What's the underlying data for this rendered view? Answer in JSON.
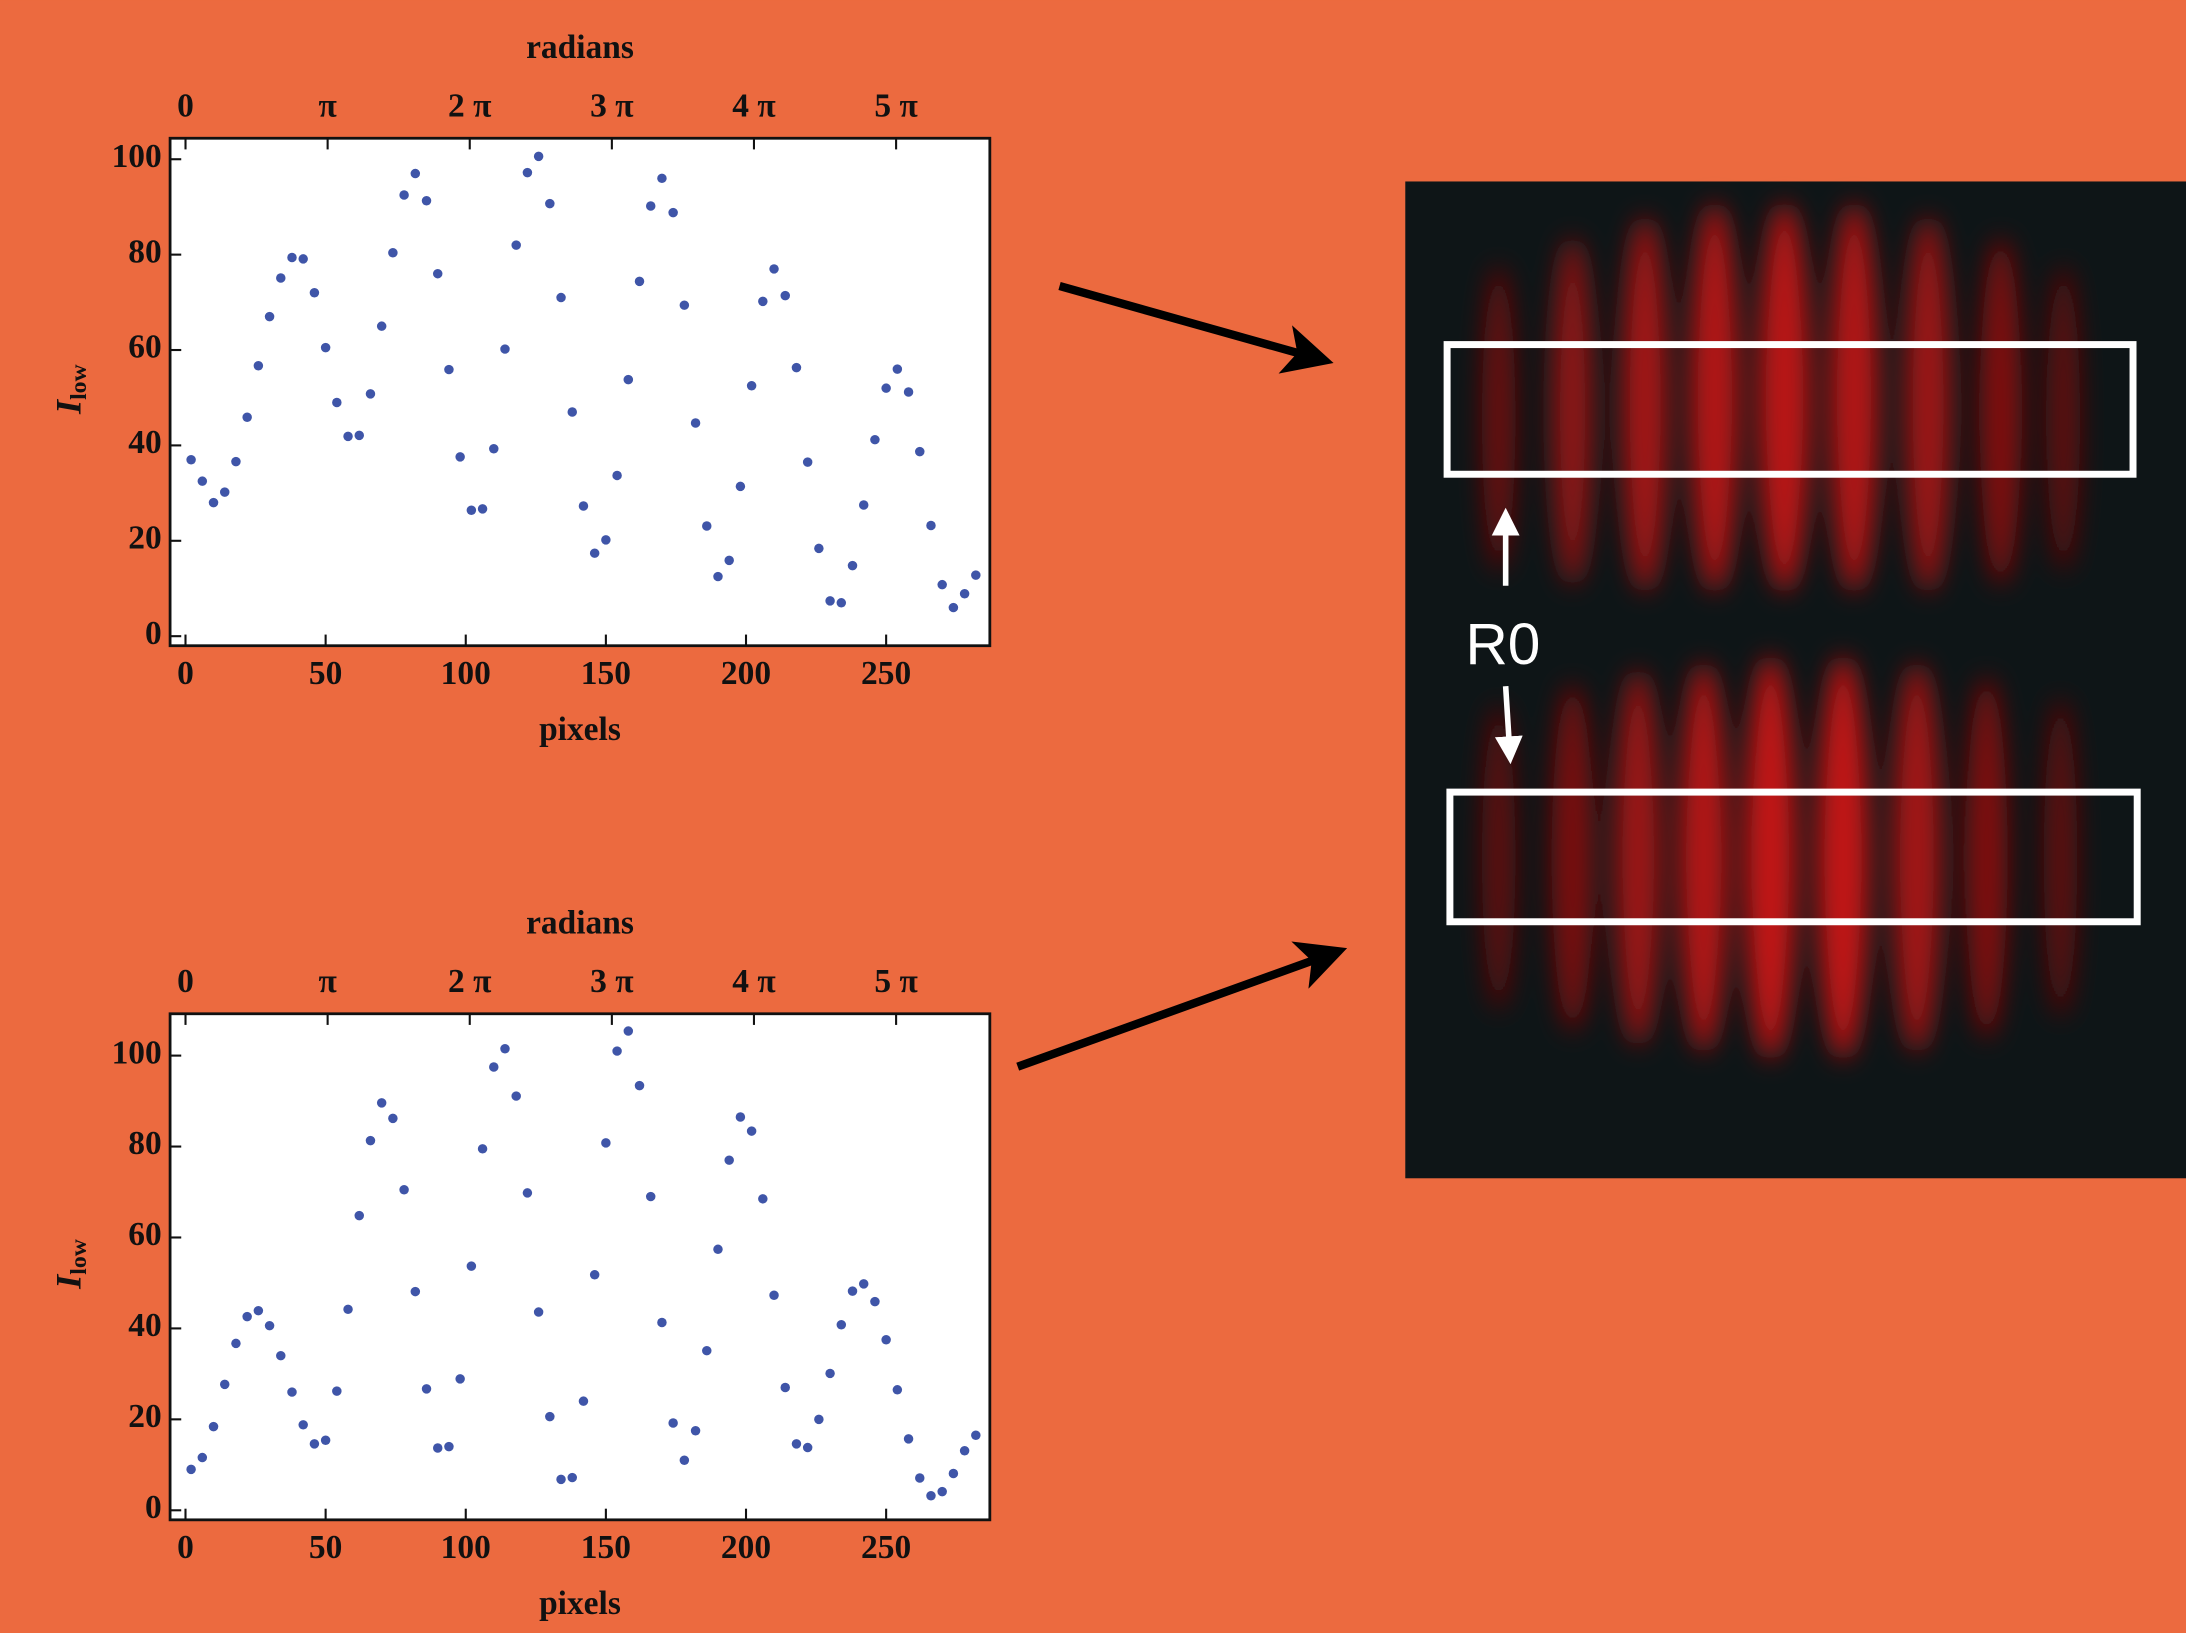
{
  "chart_data": [
    {
      "type": "scatter",
      "x2_label": "radians",
      "x_label": "pixels",
      "y_label": "I",
      "y_label_sub": "low",
      "color": "#3f55a8",
      "x": [
        2,
        6,
        10,
        14,
        18,
        22,
        26,
        30,
        34,
        38,
        42,
        46,
        50,
        54,
        58,
        62,
        66,
        70,
        74,
        78,
        82,
        86,
        90,
        94,
        98,
        102,
        106,
        110,
        114,
        118,
        122,
        126,
        130,
        134,
        138,
        142,
        146,
        150,
        154,
        158,
        162,
        166,
        170,
        174,
        178,
        182,
        186,
        190,
        194,
        198,
        202,
        206,
        210,
        214,
        218,
        222,
        226,
        230,
        234,
        238,
        242,
        246,
        250,
        254,
        258,
        262,
        266,
        270,
        274,
        278,
        282
      ],
      "values": [
        37,
        32.5,
        28,
        30.2,
        36.6,
        45.9,
        56.7,
        67,
        75.1,
        79.4,
        79.1,
        72,
        60.5,
        49,
        41.9,
        42.1,
        50.8,
        65,
        80.4,
        92.5,
        97,
        91.3,
        76,
        55.9,
        37.6,
        26.4,
        26.7,
        39.3,
        60.2,
        82,
        97.2,
        100.6,
        90.7,
        71,
        47,
        27.3,
        17.4,
        20.2,
        33.7,
        53.8,
        74.4,
        90.2,
        96,
        88.8,
        69.4,
        44.7,
        23.1,
        12.5,
        15.9,
        31.4,
        52.5,
        70.2,
        77,
        71.4,
        56.3,
        36.5,
        18.4,
        7.4,
        7,
        14.8,
        27.5,
        41.2,
        52,
        56,
        51.2,
        38.7,
        23.2,
        10.8,
        6,
        8.9,
        12.8
      ],
      "xlim": [
        -5.5,
        287
      ],
      "xticks": [
        0,
        50,
        100,
        150,
        200,
        250
      ],
      "ylim": [
        -2,
        104.4
      ],
      "yticks": [
        0,
        20,
        40,
        60,
        80,
        100
      ],
      "x2lim": [
        -0.341,
        17.78
      ],
      "x2ticks": [
        0,
        {
          "value": 3.1416,
          "label": "π"
        },
        {
          "value": 6.2832,
          "label": "2 π"
        },
        {
          "value": 9.4248,
          "label": "3 π"
        },
        {
          "value": 12.566,
          "label": "4 π"
        },
        {
          "value": 15.708,
          "label": "5 π"
        }
      ]
    },
    {
      "type": "scatter",
      "x2_label": "radians",
      "x_label": "pixels",
      "y_label": "I",
      "y_label_sub": "low",
      "color": "#3f55a8",
      "x": [
        2,
        6,
        10,
        14,
        18,
        22,
        26,
        30,
        34,
        38,
        42,
        46,
        50,
        54,
        58,
        62,
        66,
        70,
        74,
        78,
        82,
        86,
        90,
        94,
        98,
        102,
        106,
        110,
        114,
        118,
        122,
        126,
        130,
        134,
        138,
        142,
        146,
        150,
        154,
        158,
        162,
        166,
        170,
        174,
        178,
        182,
        186,
        190,
        194,
        198,
        202,
        206,
        210,
        214,
        218,
        222,
        226,
        230,
        234,
        238,
        242,
        246,
        250,
        254,
        258,
        262,
        266,
        270,
        274,
        278,
        282
      ],
      "values": [
        9,
        11.6,
        18.4,
        27.7,
        36.7,
        42.6,
        43.9,
        40.6,
        34,
        26,
        18.8,
        14.6,
        15.4,
        26.2,
        44.2,
        64.8,
        81.3,
        89.6,
        86.2,
        70.5,
        48.1,
        26.7,
        13.7,
        14,
        28.9,
        53.7,
        79.5,
        97.5,
        101.5,
        91.1,
        69.8,
        43.6,
        20.6,
        6.8,
        7.2,
        24,
        51.8,
        80.8,
        101,
        105.4,
        93.4,
        69,
        41.3,
        19.2,
        11,
        17.5,
        35.1,
        57.4,
        77,
        86.5,
        83.4,
        68.5,
        47.3,
        27,
        14.6,
        13.8,
        20,
        30.1,
        40.8,
        48.2,
        49.8,
        45.9,
        37.5,
        26.5,
        15.7,
        7.1,
        3.2,
        4.1,
        8.1,
        13.1,
        16.5
      ],
      "xlim": [
        -5.5,
        287
      ],
      "xticks": [
        0,
        50,
        100,
        150,
        200,
        250
      ],
      "ylim": [
        -2.1,
        109.2
      ],
      "yticks": [
        0,
        20,
        40,
        60,
        80,
        100
      ],
      "x2lim": [
        -0.341,
        17.78
      ],
      "x2ticks": [
        0,
        {
          "value": 3.1416,
          "label": "π"
        },
        {
          "value": 6.2832,
          "label": "2 π"
        },
        {
          "value": 9.4248,
          "label": "3 π"
        },
        {
          "value": 12.566,
          "label": "4 π"
        },
        {
          "value": 15.708,
          "label": "5 π"
        }
      ]
    }
  ],
  "image": {
    "label": "R0"
  }
}
